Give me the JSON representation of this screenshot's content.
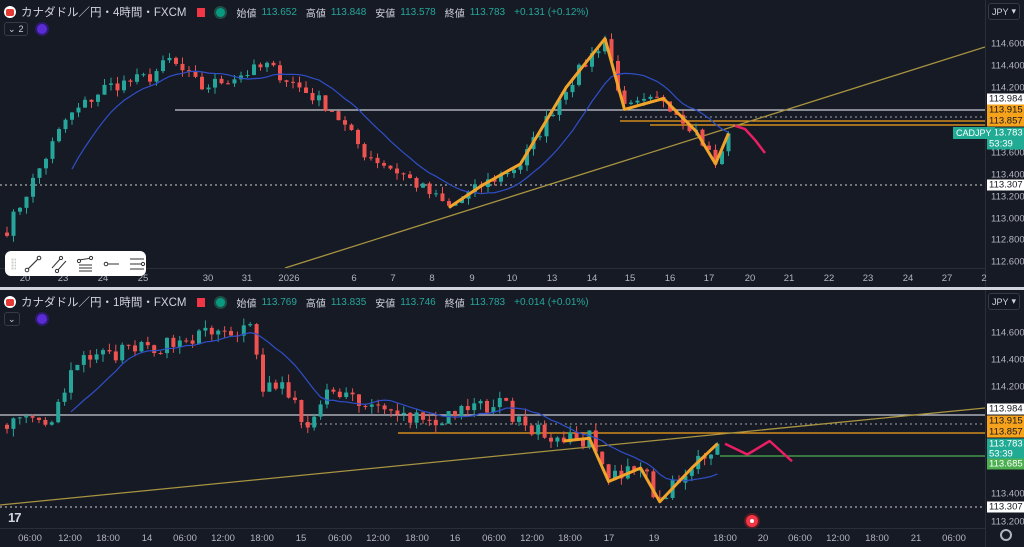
{
  "top": {
    "title": "カナダドル／円・4時間・FXCM",
    "collapse_label": "2",
    "ohlc": {
      "open_label": "始値",
      "open": "113.652",
      "high_label": "高値",
      "high": "113.848",
      "low_label": "安値",
      "low": "113.578",
      "close_label": "終値",
      "close": "113.783",
      "change": "+0.131 (+0.12%)"
    },
    "currency": "JPY",
    "price_ticks": [
      "114.600",
      "114.400",
      "114.200",
      "113.600",
      "113.400",
      "113.200",
      "113.000",
      "112.800",
      "112.600"
    ],
    "badges": {
      "level1": "113.984",
      "level2": "113.915",
      "level3": "113.857",
      "last": "113.783",
      "countdown": "53:39",
      "low_level": "113.307"
    },
    "symbol_tag": "CADJPY",
    "time_labels": [
      "20",
      "23",
      "24",
      "25",
      "30",
      "31",
      "2026",
      "6",
      "7",
      "8",
      "9",
      "10",
      "13",
      "14",
      "15",
      "16",
      "17",
      "20",
      "21",
      "22",
      "23",
      "24",
      "27",
      "2"
    ]
  },
  "bottom": {
    "title": "カナダドル／円・1時間・FXCM",
    "ohlc": {
      "open_label": "始値",
      "open": "113.769",
      "high_label": "高値",
      "high": "113.835",
      "low_label": "安値",
      "low": "113.746",
      "close_label": "終値",
      "close": "113.783",
      "change": "+0.014 (+0.01%)"
    },
    "currency": "JPY",
    "price_ticks": [
      "114.600",
      "114.400",
      "114.200",
      "113.400",
      "113.200"
    ],
    "badges": {
      "level1": "113.984",
      "level2": "113.915",
      "level3": "113.857",
      "last": "113.783",
      "countdown": "53:39",
      "target": "113.685",
      "low_level": "113.307"
    },
    "time_labels": [
      "06:00",
      "12:00",
      "18:00",
      "14",
      "06:00",
      "12:00",
      "18:00",
      "15",
      "06:00",
      "12:00",
      "18:00",
      "16",
      "06:00",
      "12:00",
      "18:00",
      "17",
      "19",
      "18:00",
      "20",
      "06:00",
      "12:00",
      "18:00",
      "21",
      "06:00"
    ]
  },
  "toolbar": {
    "tools": [
      "trend-line",
      "parallel-channel",
      "fib-retracement",
      "horizontal-ray",
      "horizontal-lines"
    ]
  },
  "colors": {
    "up": "#26a69a",
    "down": "#ef5350",
    "ma": "#2f4fc9",
    "zigzag": "#f0a32a",
    "forecast": "#e91e63",
    "trend": "#a89440",
    "level": "#c9ccd3",
    "orange": "#f7a21b",
    "green": "#4caf50"
  },
  "chart_data": [
    {
      "type": "candlestick",
      "title": "カナダドル／円・4時間・FXCM",
      "ylim": [
        112.5,
        114.75
      ],
      "bars": 112,
      "close_keypoints": [
        [
          0,
          112.9
        ],
        [
          9,
          113.9
        ],
        [
          15,
          114.2
        ],
        [
          22,
          114.3
        ],
        [
          25,
          114.45
        ],
        [
          30,
          114.2
        ],
        [
          40,
          114.4
        ],
        [
          45,
          114.2
        ],
        [
          50,
          114.0
        ],
        [
          55,
          113.6
        ],
        [
          61,
          113.4
        ],
        [
          68,
          113.1
        ],
        [
          73,
          113.3
        ],
        [
          79,
          113.5
        ],
        [
          86,
          114.2
        ],
        [
          92,
          114.65
        ],
        [
          95,
          114.0
        ],
        [
          101,
          114.1
        ],
        [
          106,
          113.8
        ],
        [
          109,
          113.5
        ],
        [
          112,
          113.78
        ]
      ],
      "levels": [
        113.984,
        113.915,
        113.857,
        113.307
      ],
      "forecast": [
        [
          113.85,
          0
        ],
        [
          113.82,
          1
        ],
        [
          113.72,
          2
        ],
        [
          113.6,
          3
        ]
      ]
    },
    {
      "type": "candlestick",
      "title": "カナダドル／円・1時間・FXCM",
      "ylim": [
        113.1,
        114.75
      ],
      "bars": 112,
      "close_keypoints": [
        [
          0,
          113.95
        ],
        [
          7,
          113.9
        ],
        [
          9,
          114.2
        ],
        [
          12,
          114.4
        ],
        [
          23,
          114.5
        ],
        [
          32,
          114.6
        ],
        [
          38,
          114.62
        ],
        [
          40,
          114.2
        ],
        [
          43,
          114.2
        ],
        [
          47,
          113.9
        ],
        [
          51,
          114.2
        ],
        [
          59,
          114.0
        ],
        [
          68,
          113.95
        ],
        [
          77,
          114.1
        ],
        [
          81,
          113.9
        ],
        [
          87,
          113.8
        ],
        [
          91,
          113.82
        ],
        [
          94,
          113.5
        ],
        [
          99,
          113.6
        ],
        [
          102,
          113.35
        ],
        [
          107,
          113.6
        ],
        [
          112,
          113.78
        ]
      ],
      "levels": [
        113.984,
        113.915,
        113.857,
        113.685,
        113.307
      ],
      "forecast": [
        [
          113.78,
          0
        ],
        [
          113.7,
          1
        ],
        [
          113.8,
          2
        ],
        [
          113.65,
          3
        ]
      ]
    }
  ]
}
